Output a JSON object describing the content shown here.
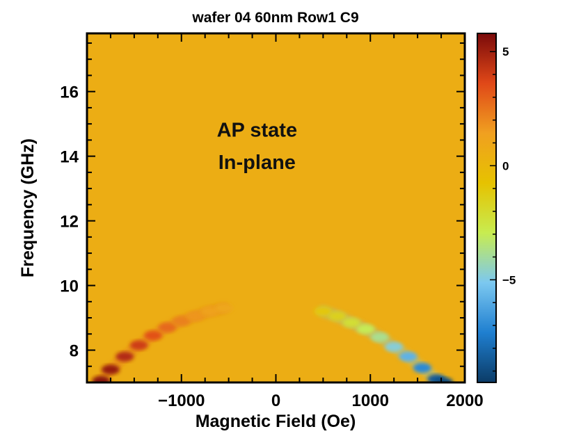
{
  "chart_data": {
    "type": "heatmap",
    "title": "wafer 04 60nm Row1 C9",
    "xlabel": "Magnetic Field (Oe)",
    "ylabel": "Frequency (GHz)",
    "xlim": [
      -2000,
      2000
    ],
    "ylim": [
      7,
      17.8
    ],
    "x_ticks": [
      -1000,
      0,
      1000,
      2000
    ],
    "x_tick_labels": [
      "−1000",
      "0",
      "1000",
      "2000"
    ],
    "y_ticks": [
      8,
      10,
      12,
      14,
      16
    ],
    "y_tick_labels": [
      "8",
      "10",
      "12",
      "14",
      "16"
    ],
    "colorbar": {
      "range": [
        -9.5,
        5.8
      ],
      "ticks": [
        5,
        0,
        -5
      ],
      "tick_labels": [
        "5",
        "0",
        "−5"
      ],
      "colors": [
        "#0b3b66",
        "#1f7fd0",
        "#7cc8f0",
        "#c8ec50",
        "#e6c200",
        "#f0a020",
        "#e04818",
        "#7a0a0a"
      ]
    },
    "background_value": 0.6,
    "annotations": [
      {
        "text": "AP state",
        "x": -200,
        "y": 14.6
      },
      {
        "text": "In-plane",
        "x": -200,
        "y": 13.6
      }
    ],
    "series": [
      {
        "x": [
          -1850,
          -1750,
          -1600,
          -1450,
          -1300,
          -1150,
          -1000,
          -850,
          -700,
          -550
        ],
        "y": [
          7.05,
          7.4,
          7.8,
          8.15,
          8.45,
          8.7,
          8.9,
          9.05,
          9.2,
          9.3
        ],
        "values": [
          5.5,
          5.2,
          4.6,
          4.0,
          3.4,
          2.8,
          2.2,
          1.7,
          1.3,
          1.0
        ]
      },
      {
        "x": [
          500,
          650,
          800,
          950,
          1100,
          1250,
          1400,
          1550,
          1700,
          1780
        ],
        "y": [
          9.2,
          9.05,
          8.85,
          8.65,
          8.4,
          8.1,
          7.8,
          7.45,
          7.1,
          7.0
        ],
        "values": [
          -1.0,
          -1.5,
          -2.2,
          -3.0,
          -3.8,
          -4.8,
          -5.8,
          -7.0,
          -8.5,
          -9.0
        ]
      }
    ]
  }
}
